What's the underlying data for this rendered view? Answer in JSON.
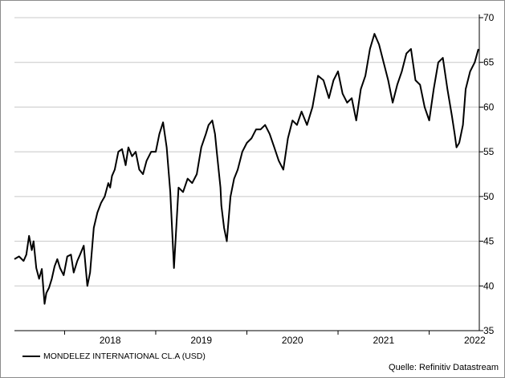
{
  "chart_data": {
    "type": "line",
    "title": "",
    "xlabel": "",
    "ylabel": "",
    "y_axis_position": "right",
    "ylim": [
      35,
      70
    ],
    "yticks": [
      35,
      40,
      45,
      50,
      55,
      60,
      65,
      70
    ],
    "xlim": [
      2017.45,
      2022.55
    ],
    "x_tick_labels": [
      "2018",
      "2019",
      "2020",
      "2021",
      "2022"
    ],
    "grid": "horizontal",
    "legend_position": "bottom-left",
    "series": [
      {
        "name": "MONDELEZ INTERNATIONAL CL.A (USD)",
        "color": "#000000",
        "x": [
          2017.45,
          2017.5,
          2017.55,
          2017.58,
          2017.61,
          2017.64,
          2017.66,
          2017.69,
          2017.72,
          2017.75,
          2017.78,
          2017.8,
          2017.83,
          2017.86,
          2017.89,
          2017.92,
          2017.95,
          2017.99,
          2018.03,
          2018.07,
          2018.1,
          2018.14,
          2018.17,
          2018.21,
          2018.25,
          2018.28,
          2018.32,
          2018.36,
          2018.4,
          2018.44,
          2018.48,
          2018.5,
          2018.52,
          2018.55,
          2018.59,
          2018.63,
          2018.67,
          2018.7,
          2018.74,
          2018.78,
          2018.82,
          2018.86,
          2018.9,
          2018.95,
          2019.0,
          2019.04,
          2019.08,
          2019.12,
          2019.16,
          2019.2,
          2019.25,
          2019.3,
          2019.35,
          2019.4,
          2019.45,
          2019.5,
          2019.55,
          2019.58,
          2019.62,
          2019.65,
          2019.67,
          2019.69,
          2019.71,
          2019.72,
          2019.75,
          2019.78,
          2019.82,
          2019.86,
          2019.9,
          2019.95,
          2020.0,
          2020.05,
          2020.1,
          2020.15,
          2020.2,
          2020.25,
          2020.3,
          2020.35,
          2020.4,
          2020.45,
          2020.5,
          2020.55,
          2020.6,
          2020.66,
          2020.72,
          2020.78,
          2020.84,
          2020.9,
          2020.95,
          2021.0,
          2021.05,
          2021.1,
          2021.15,
          2021.2,
          2021.25,
          2021.3,
          2021.35,
          2021.4,
          2021.45,
          2021.5,
          2021.55,
          2021.6,
          2021.65,
          2021.7,
          2021.75,
          2021.8,
          2021.85,
          2021.9,
          2021.95,
          2022.0,
          2022.05,
          2022.1,
          2022.15,
          2022.2,
          2022.25,
          2022.28,
          2022.3,
          2022.33,
          2022.37,
          2022.4,
          2022.45,
          2022.5,
          2022.54
        ],
        "y": [
          43.0,
          43.3,
          42.8,
          43.5,
          45.6,
          44.0,
          45.0,
          42.0,
          40.8,
          41.9,
          38.0,
          39.2,
          39.8,
          40.8,
          42.2,
          43.0,
          42.0,
          41.2,
          43.3,
          43.5,
          41.5,
          42.8,
          43.5,
          44.5,
          40.0,
          41.5,
          46.5,
          48.2,
          49.3,
          50.0,
          51.5,
          51.0,
          52.3,
          53.0,
          55.0,
          55.3,
          53.5,
          55.5,
          54.5,
          55.0,
          53.0,
          52.5,
          54.0,
          55.0,
          55.0,
          57.0,
          58.3,
          55.5,
          50.5,
          42.0,
          51.0,
          50.5,
          52.0,
          51.5,
          52.5,
          55.5,
          57.0,
          58.0,
          58.5,
          57.0,
          55.0,
          53.0,
          51.0,
          49.0,
          46.5,
          45.0,
          50.0,
          52.0,
          53.0,
          55.0,
          56.0,
          56.5,
          57.5,
          57.5,
          58.0,
          57.0,
          55.5,
          54.0,
          53.0,
          56.5,
          58.5,
          58.0,
          59.5,
          58.0,
          60.0,
          63.5,
          63.0,
          61.0,
          63.0,
          64.0,
          61.5,
          60.5,
          61.0,
          58.5,
          62.0,
          63.5,
          66.5,
          68.2,
          67.0,
          65.0,
          63.0,
          60.5,
          62.5,
          64.0,
          66.0,
          66.5,
          63.0,
          62.5,
          60.0,
          58.5,
          62.0,
          65.0,
          65.5,
          62.0,
          59.0,
          57.0,
          55.5,
          56.0,
          58.0,
          62.0,
          64.0,
          65.0,
          66.5
        ]
      }
    ]
  },
  "legend": {
    "label": "MONDELEZ INTERNATIONAL CL.A (USD)"
  },
  "source": {
    "label": "Quelle: Refinitiv Datastream"
  },
  "colors": {
    "line": "#000000",
    "grid": "#c8c8c8",
    "axis": "#000000",
    "frame": "#8c8c8c"
  }
}
